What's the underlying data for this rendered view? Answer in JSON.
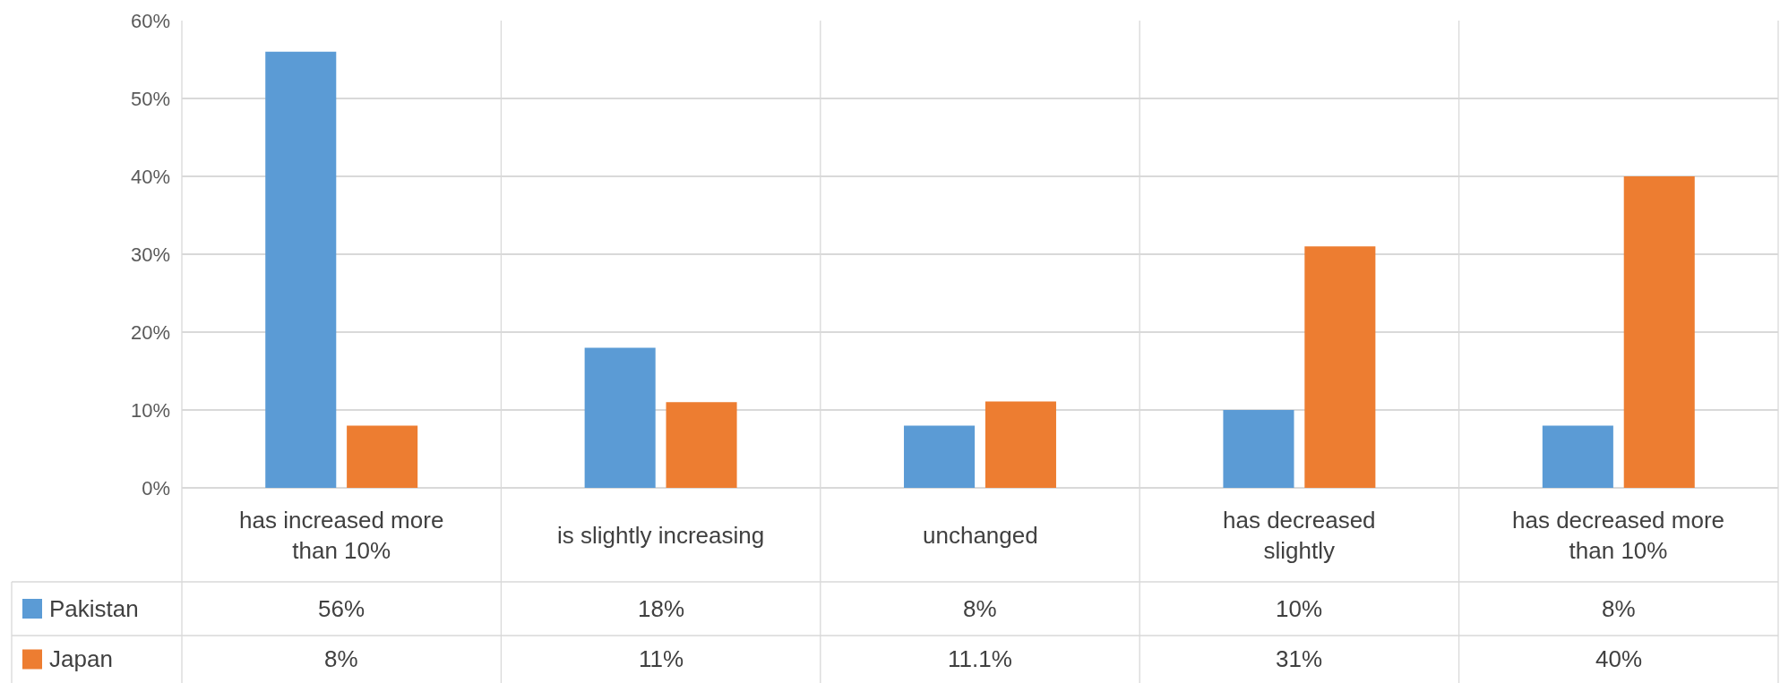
{
  "chart_data": {
    "type": "bar",
    "categories": [
      "has increased more than 10%",
      "is slightly increasing",
      "unchanged",
      "has decreased slightly",
      "has decreased more than 10%"
    ],
    "series": [
      {
        "name": "Pakistan",
        "color": "#5b9bd5",
        "values": [
          56,
          18,
          8,
          10,
          8
        ],
        "value_labels": [
          "56%",
          "18%",
          "8%",
          "10%",
          "8%"
        ]
      },
      {
        "name": "Japan",
        "color": "#ed7d31",
        "values": [
          8,
          11,
          11.1,
          31,
          40
        ],
        "value_labels": [
          "8%",
          "11%",
          "11.1%",
          "31%",
          "40%"
        ]
      }
    ],
    "ylim": [
      0,
      60
    ],
    "yticks": [
      {
        "value": 0,
        "label": "0%"
      },
      {
        "value": 10,
        "label": "10%"
      },
      {
        "value": 20,
        "label": "20%"
      },
      {
        "value": 30,
        "label": "30%"
      },
      {
        "value": 40,
        "label": "40%"
      },
      {
        "value": 50,
        "label": "50%"
      },
      {
        "value": 60,
        "label": "60%"
      }
    ],
    "grid": "y",
    "legend": "bottom left"
  }
}
